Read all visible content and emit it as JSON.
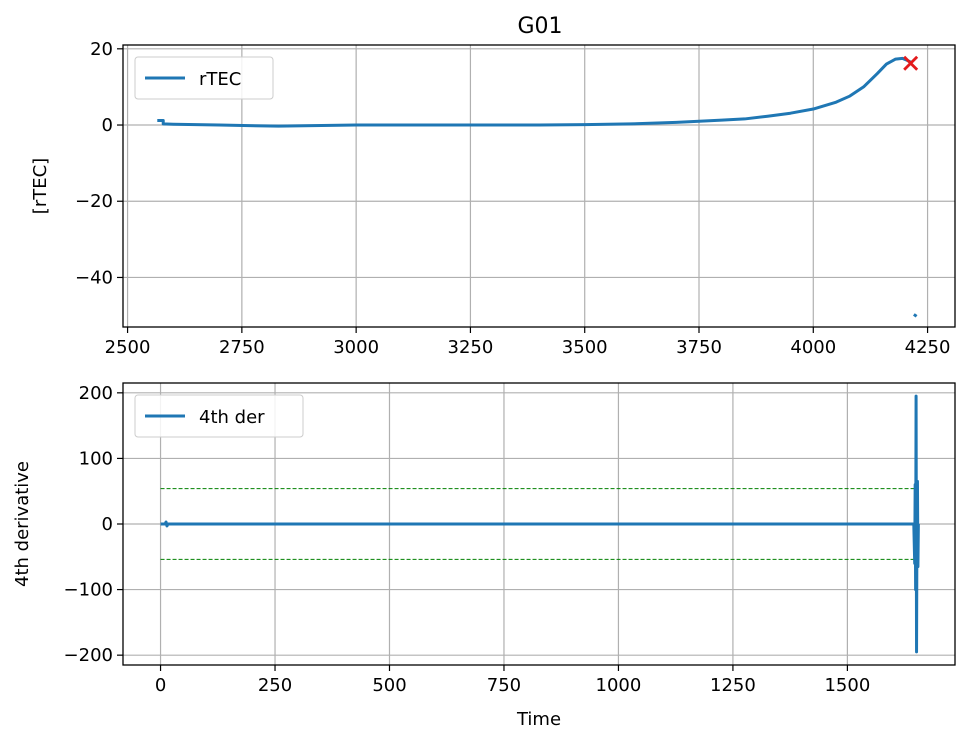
{
  "figure": {
    "title": "G01"
  },
  "chart_data": [
    {
      "type": "line",
      "title": "G01",
      "xlabel": "",
      "ylabel": "[rTEC]",
      "xlim": [
        2490,
        4310
      ],
      "ylim": [
        -53,
        21
      ],
      "xticks": [
        2500,
        2750,
        3000,
        3250,
        3500,
        3750,
        4000,
        4250
      ],
      "yticks": [
        20,
        0,
        -20,
        -40
      ],
      "grid": true,
      "legend": {
        "position": "top-left",
        "entries": [
          "rTEC"
        ]
      },
      "series": [
        {
          "name": "rTEC",
          "color": "#1f77b4",
          "x": [
            2565,
            2578,
            2578,
            2600,
            2700,
            2830,
            3000,
            3200,
            3400,
            3500,
            3600,
            3700,
            3800,
            3850,
            3900,
            3950,
            4000,
            4050,
            4080,
            4110,
            4140,
            4160,
            4180,
            4195,
            4205,
            4215
          ],
          "y": [
            1.2,
            1.2,
            0.3,
            0.2,
            0.0,
            -0.3,
            0.0,
            0.0,
            0.0,
            0.1,
            0.3,
            0.7,
            1.3,
            1.6,
            2.3,
            3.1,
            4.2,
            6.0,
            7.6,
            10.0,
            13.5,
            16.0,
            17.3,
            17.5,
            17.0,
            16.4
          ]
        },
        {
          "name": "",
          "color": "#1f77b4",
          "x": [
            4220,
            4226
          ],
          "y": [
            -49.7,
            -50.2
          ]
        }
      ],
      "markers": [
        {
          "type": "x",
          "color": "#e31a1c",
          "x": 4213,
          "y": 16.2
        }
      ]
    },
    {
      "type": "line",
      "title": "",
      "xlabel": "Time",
      "ylabel": "4th derivative",
      "xlim": [
        -82,
        1735
      ],
      "ylim": [
        -215,
        215
      ],
      "xticks": [
        0,
        250,
        500,
        750,
        1000,
        1250,
        1500
      ],
      "yticks": [
        200,
        100,
        0,
        -100,
        -200
      ],
      "grid": true,
      "legend": {
        "position": "top-left",
        "entries": [
          "4th der"
        ]
      },
      "series": [
        {
          "name": "4th der",
          "color": "#1f77b4",
          "x": [
            0,
            5,
            10,
            12,
            14,
            16,
            20,
            50,
            500,
            1000,
            1500,
            1640,
            1645,
            1647,
            1648,
            1649,
            1650,
            1651,
            1652,
            1653,
            1654,
            1655
          ],
          "y": [
            0,
            0,
            0,
            3,
            -3,
            0,
            0,
            0,
            0,
            0,
            0,
            0,
            0,
            -60,
            60,
            -100,
            195,
            -195,
            20,
            65,
            -65,
            0
          ]
        }
      ],
      "thresholds": [
        {
          "y": 54,
          "color": "#008000",
          "x": [
            0,
            1650
          ]
        },
        {
          "y": -54,
          "color": "#008000",
          "x": [
            0,
            1650
          ]
        }
      ]
    }
  ]
}
